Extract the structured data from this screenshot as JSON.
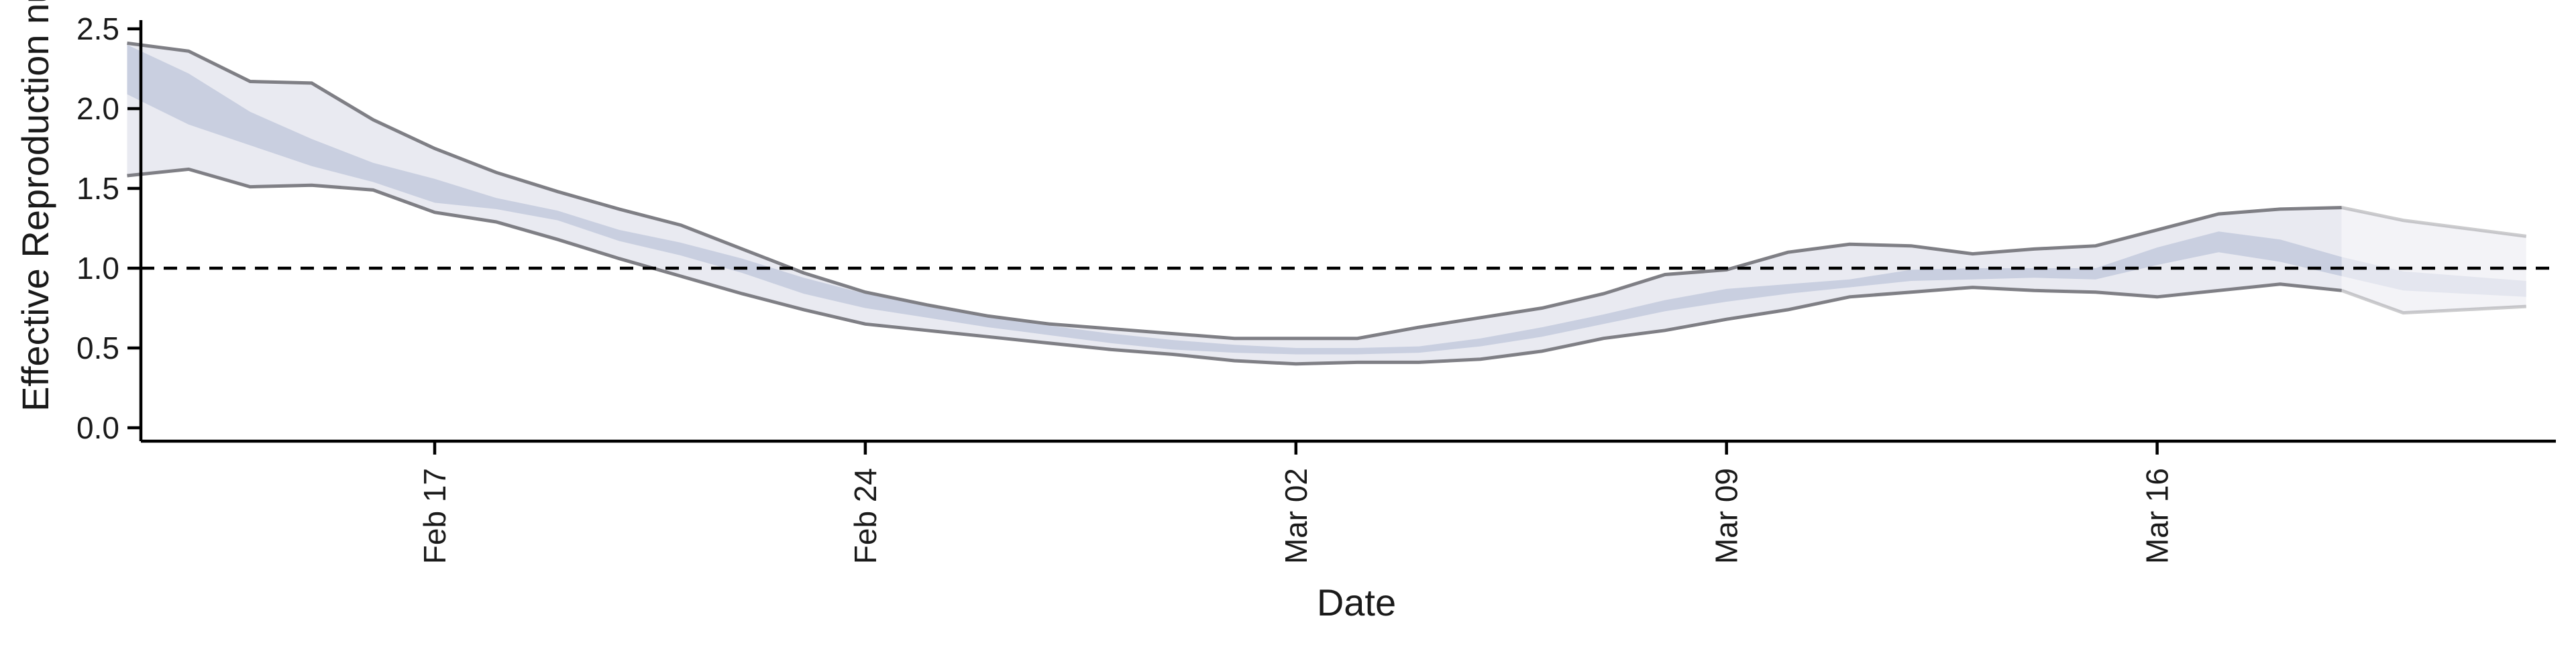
{
  "chart_data": {
    "type": "area",
    "xlabel": "Date",
    "ylabel": "Effective Reproduction number",
    "ylim": [
      -0.1,
      2.55
    ],
    "yticks": [
      "0.0",
      "0.5",
      "1.0",
      "1.5",
      "2.0",
      "2.5"
    ],
    "xticks": [
      {
        "date": "2020-02-17",
        "label": "Feb 17"
      },
      {
        "date": "2020-02-24",
        "label": "Feb 24"
      },
      {
        "date": "2020-03-02",
        "label": "Mar 02"
      },
      {
        "date": "2020-03-09",
        "label": "Mar 09"
      },
      {
        "date": "2020-03-16",
        "label": "Mar 16"
      }
    ],
    "reference_line": {
      "y": 1.0,
      "style": "dashed"
    },
    "grid": false,
    "legend": "none",
    "colors": {
      "outer_band": "#e9eaf1",
      "inner_band": "#c9cfe0",
      "outer_band_edge": "#7f7f85",
      "reference_line": "#000000"
    },
    "series": {
      "dates": [
        "2020-02-12",
        "2020-02-13",
        "2020-02-14",
        "2020-02-15",
        "2020-02-16",
        "2020-02-17",
        "2020-02-18",
        "2020-02-19",
        "2020-02-20",
        "2020-02-21",
        "2020-02-22",
        "2020-02-23",
        "2020-02-24",
        "2020-02-25",
        "2020-02-26",
        "2020-02-27",
        "2020-02-28",
        "2020-02-29",
        "2020-03-01",
        "2020-03-02",
        "2020-03-03",
        "2020-03-04",
        "2020-03-05",
        "2020-03-06",
        "2020-03-07",
        "2020-03-08",
        "2020-03-09",
        "2020-03-10",
        "2020-03-11",
        "2020-03-12",
        "2020-03-13",
        "2020-03-14",
        "2020-03-15",
        "2020-03-16",
        "2020-03-17",
        "2020-03-18",
        "2020-03-19",
        "2020-03-20",
        "2020-03-21",
        "2020-03-22"
      ],
      "outer_upper": [
        2.41,
        2.36,
        2.17,
        2.16,
        1.93,
        1.75,
        1.6,
        1.48,
        1.37,
        1.27,
        1.12,
        0.97,
        0.85,
        0.77,
        0.7,
        0.65,
        0.62,
        0.59,
        0.56,
        0.56,
        0.56,
        0.63,
        0.69,
        0.75,
        0.84,
        0.96,
        0.99,
        1.1,
        1.15,
        1.14,
        1.09,
        1.12,
        1.14,
        1.24,
        1.34,
        1.37,
        1.38,
        1.3,
        1.25,
        1.2
      ],
      "outer_lower": [
        1.58,
        1.62,
        1.51,
        1.52,
        1.49,
        1.35,
        1.29,
        1.18,
        1.06,
        0.95,
        0.84,
        0.74,
        0.65,
        0.61,
        0.57,
        0.53,
        0.49,
        0.46,
        0.42,
        0.4,
        0.41,
        0.41,
        0.43,
        0.48,
        0.56,
        0.61,
        0.68,
        0.74,
        0.82,
        0.85,
        0.88,
        0.86,
        0.85,
        0.82,
        0.86,
        0.9,
        0.86,
        0.72,
        0.74,
        0.76
      ],
      "inner_upper": [
        2.4,
        2.22,
        1.98,
        1.81,
        1.66,
        1.56,
        1.44,
        1.36,
        1.24,
        1.16,
        1.06,
        0.94,
        0.84,
        0.76,
        0.7,
        0.64,
        0.59,
        0.55,
        0.52,
        0.5,
        0.5,
        0.51,
        0.56,
        0.63,
        0.71,
        0.8,
        0.87,
        0.9,
        0.93,
        0.99,
        1.0,
        1.0,
        1.0,
        1.13,
        1.23,
        1.18,
        1.07,
        0.98,
        0.95,
        0.92
      ],
      "inner_lower": [
        2.09,
        1.9,
        1.77,
        1.64,
        1.54,
        1.41,
        1.37,
        1.3,
        1.17,
        1.08,
        0.97,
        0.84,
        0.75,
        0.69,
        0.63,
        0.58,
        0.53,
        0.49,
        0.47,
        0.46,
        0.46,
        0.47,
        0.51,
        0.57,
        0.65,
        0.73,
        0.79,
        0.84,
        0.88,
        0.92,
        0.93,
        0.94,
        0.93,
        1.02,
        1.1,
        1.04,
        0.95,
        0.86,
        0.84,
        0.82
      ]
    }
  }
}
